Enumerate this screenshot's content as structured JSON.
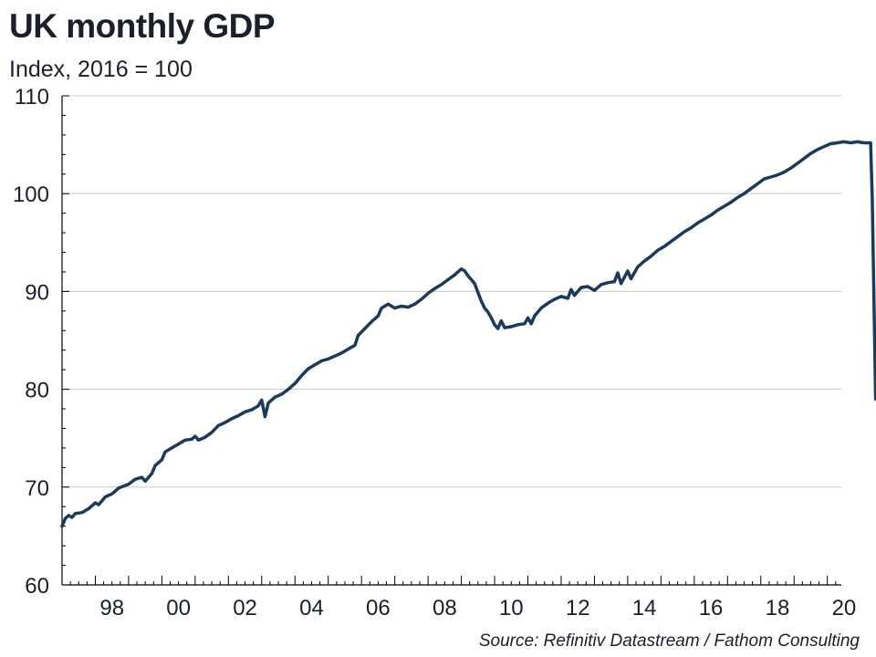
{
  "chart_data": {
    "type": "line",
    "title": "UK monthly GDP",
    "subtitle": "Index, 2016 = 100",
    "source": "Source: Refinitiv Datastream / Fathom Consulting",
    "xlabel": "",
    "ylabel": "",
    "xlim": [
      1997.0,
      2020.42
    ],
    "ylim": [
      60,
      110
    ],
    "yticks": [
      60,
      70,
      80,
      90,
      100,
      110
    ],
    "xticks": [
      {
        "value": 1998,
        "label": "98"
      },
      {
        "value": 2000,
        "label": "00"
      },
      {
        "value": 2002,
        "label": "02"
      },
      {
        "value": 2004,
        "label": "04"
      },
      {
        "value": 2006,
        "label": "06"
      },
      {
        "value": 2008,
        "label": "08"
      },
      {
        "value": 2010,
        "label": "10"
      },
      {
        "value": 2012,
        "label": "12"
      },
      {
        "value": 2014,
        "label": "14"
      },
      {
        "value": 2016,
        "label": "16"
      },
      {
        "value": 2018,
        "label": "18"
      },
      {
        "value": 2020,
        "label": "20"
      }
    ],
    "grid": true,
    "line_color": "#1b3a5c",
    "series": [
      {
        "name": "",
        "points": [
          [
            1997.0,
            66.0
          ],
          [
            1997.1,
            66.8
          ],
          [
            1997.2,
            67.1
          ],
          [
            1997.3,
            66.9
          ],
          [
            1997.4,
            67.3
          ],
          [
            1997.6,
            67.4
          ],
          [
            1997.8,
            67.8
          ],
          [
            1998.0,
            68.4
          ],
          [
            1998.1,
            68.2
          ],
          [
            1998.3,
            69.0
          ],
          [
            1998.5,
            69.3
          ],
          [
            1998.7,
            69.9
          ],
          [
            1999.0,
            70.3
          ],
          [
            1999.2,
            70.8
          ],
          [
            1999.4,
            71.0
          ],
          [
            1999.5,
            70.6
          ],
          [
            1999.7,
            71.4
          ],
          [
            1999.8,
            72.2
          ],
          [
            2000.0,
            72.8
          ],
          [
            2000.1,
            73.6
          ],
          [
            2000.3,
            74.0
          ],
          [
            2000.5,
            74.4
          ],
          [
            2000.7,
            74.8
          ],
          [
            2000.9,
            74.9
          ],
          [
            2001.0,
            75.2
          ],
          [
            2001.1,
            74.8
          ],
          [
            2001.3,
            75.1
          ],
          [
            2001.5,
            75.6
          ],
          [
            2001.7,
            76.3
          ],
          [
            2001.9,
            76.6
          ],
          [
            2002.1,
            77.0
          ],
          [
            2002.3,
            77.3
          ],
          [
            2002.5,
            77.7
          ],
          [
            2002.7,
            77.9
          ],
          [
            2002.9,
            78.3
          ],
          [
            2003.0,
            78.9
          ],
          [
            2003.1,
            77.2
          ],
          [
            2003.2,
            78.6
          ],
          [
            2003.4,
            79.2
          ],
          [
            2003.6,
            79.5
          ],
          [
            2003.8,
            80.0
          ],
          [
            2004.0,
            80.6
          ],
          [
            2004.2,
            81.4
          ],
          [
            2004.4,
            82.1
          ],
          [
            2004.6,
            82.5
          ],
          [
            2004.8,
            82.9
          ],
          [
            2005.0,
            83.1
          ],
          [
            2005.2,
            83.4
          ],
          [
            2005.4,
            83.7
          ],
          [
            2005.6,
            84.1
          ],
          [
            2005.8,
            84.5
          ],
          [
            2005.9,
            85.5
          ],
          [
            2006.1,
            86.2
          ],
          [
            2006.3,
            86.9
          ],
          [
            2006.5,
            87.5
          ],
          [
            2006.6,
            88.3
          ],
          [
            2006.8,
            88.7
          ],
          [
            2007.0,
            88.3
          ],
          [
            2007.2,
            88.5
          ],
          [
            2007.4,
            88.4
          ],
          [
            2007.6,
            88.7
          ],
          [
            2007.8,
            89.2
          ],
          [
            2008.0,
            89.8
          ],
          [
            2008.2,
            90.3
          ],
          [
            2008.4,
            90.7
          ],
          [
            2008.6,
            91.2
          ],
          [
            2008.8,
            91.7
          ],
          [
            2009.0,
            92.3
          ],
          [
            2009.1,
            92.1
          ],
          [
            2009.2,
            91.6
          ],
          [
            2009.4,
            90.8
          ],
          [
            2009.5,
            89.9
          ],
          [
            2009.6,
            89.0
          ],
          [
            2009.7,
            88.3
          ],
          [
            2009.8,
            87.9
          ],
          [
            2009.9,
            87.3
          ],
          [
            2010.0,
            86.6
          ],
          [
            2010.1,
            86.2
          ],
          [
            2010.2,
            87.0
          ],
          [
            2010.3,
            86.3
          ],
          [
            2010.5,
            86.4
          ],
          [
            2010.7,
            86.6
          ],
          [
            2010.9,
            86.7
          ],
          [
            2011.0,
            87.3
          ],
          [
            2011.1,
            86.7
          ],
          [
            2011.2,
            87.5
          ],
          [
            2011.4,
            88.3
          ],
          [
            2011.6,
            88.8
          ],
          [
            2011.8,
            89.2
          ],
          [
            2012.0,
            89.5
          ],
          [
            2012.2,
            89.3
          ],
          [
            2012.3,
            90.2
          ],
          [
            2012.4,
            89.6
          ],
          [
            2012.6,
            90.4
          ],
          [
            2012.8,
            90.5
          ],
          [
            2013.0,
            90.1
          ],
          [
            2013.2,
            90.7
          ],
          [
            2013.4,
            90.9
          ],
          [
            2013.6,
            91.0
          ],
          [
            2013.7,
            91.9
          ],
          [
            2013.8,
            90.8
          ],
          [
            2014.0,
            92.1
          ],
          [
            2014.1,
            91.3
          ],
          [
            2014.3,
            92.5
          ],
          [
            2014.5,
            93.1
          ],
          [
            2014.7,
            93.6
          ],
          [
            2014.9,
            94.2
          ],
          [
            2015.1,
            94.6
          ],
          [
            2015.3,
            95.1
          ],
          [
            2015.5,
            95.6
          ],
          [
            2015.7,
            96.1
          ],
          [
            2015.9,
            96.5
          ],
          [
            2016.1,
            97.0
          ],
          [
            2016.3,
            97.4
          ],
          [
            2016.5,
            97.8
          ],
          [
            2016.7,
            98.3
          ],
          [
            2016.9,
            98.7
          ],
          [
            2017.1,
            99.1
          ],
          [
            2017.3,
            99.6
          ],
          [
            2017.5,
            100.0
          ],
          [
            2017.7,
            100.5
          ],
          [
            2017.9,
            101.0
          ],
          [
            2018.1,
            101.5
          ],
          [
            2018.3,
            101.7
          ],
          [
            2018.5,
            101.9
          ],
          [
            2018.7,
            102.2
          ],
          [
            2018.9,
            102.6
          ],
          [
            2019.1,
            103.1
          ],
          [
            2019.3,
            103.6
          ],
          [
            2019.5,
            104.1
          ],
          [
            2019.7,
            104.5
          ],
          [
            2019.9,
            104.8
          ],
          [
            2020.1,
            105.1
          ],
          [
            2020.3,
            105.2
          ],
          [
            2020.5,
            105.3
          ],
          [
            2020.7,
            105.2
          ],
          [
            2020.9,
            105.3
          ],
          [
            2021.1,
            105.2
          ],
          [
            2021.3,
            105.2
          ],
          [
            2021.35,
            99.5
          ],
          [
            2021.45,
            79.0
          ]
        ]
      }
    ]
  }
}
